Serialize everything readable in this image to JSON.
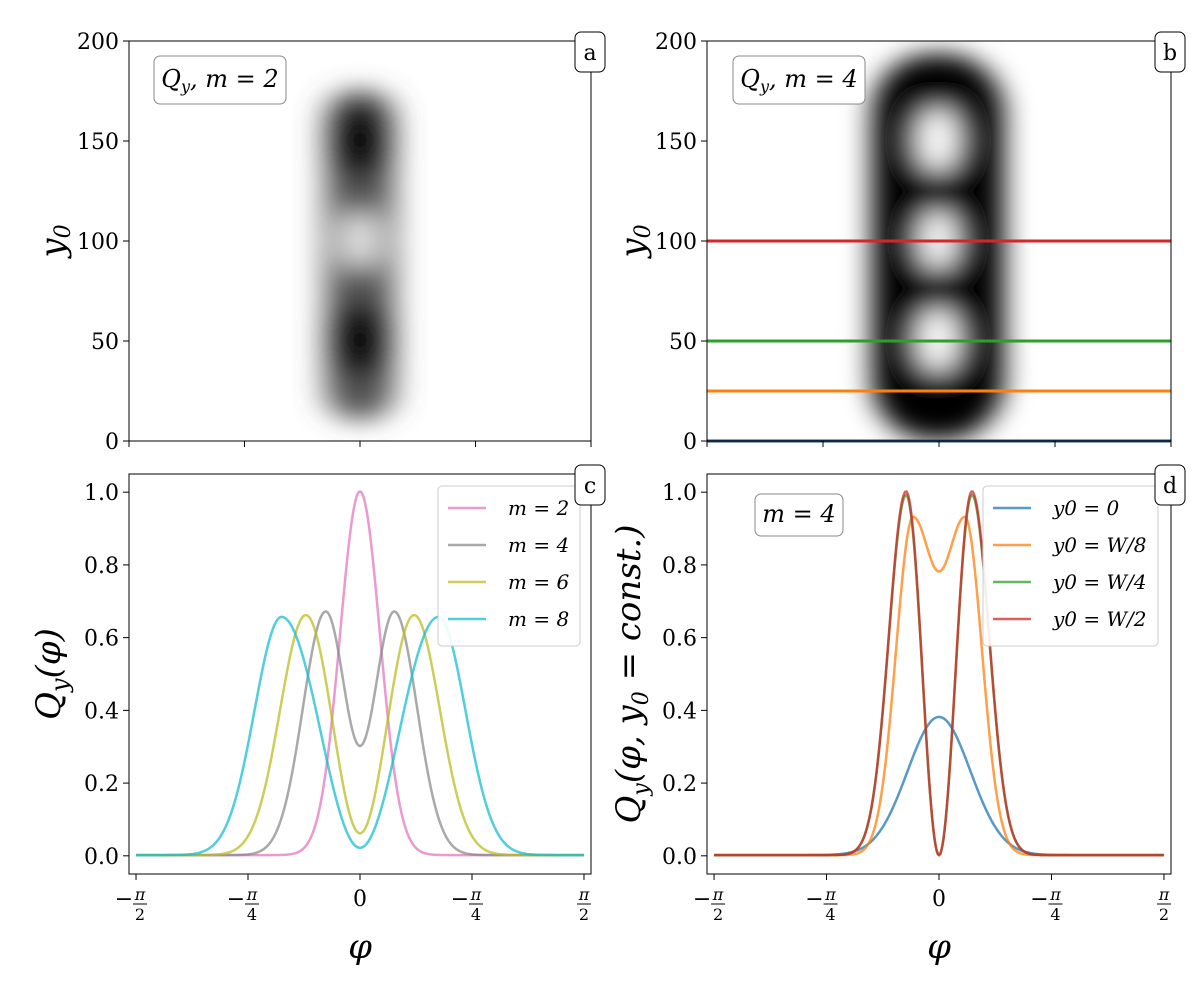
{
  "chart_data": [
    {
      "panel": "a",
      "type": "heatmap",
      "annotation": "Q_y, m = 2",
      "xlabel": "",
      "ylabel": "y0",
      "x_ticks": [],
      "y_ticks": [
        "0",
        "50",
        "100",
        "150",
        "200"
      ],
      "ylim": [
        0,
        200
      ],
      "m": 2,
      "colormap": "white-to-black"
    },
    {
      "panel": "b",
      "type": "heatmap",
      "annotation": "Q_y, m = 4",
      "xlabel": "",
      "ylabel": "y0",
      "x_ticks": [],
      "y_ticks": [
        "0",
        "50",
        "100",
        "150",
        "200"
      ],
      "ylim": [
        0,
        200
      ],
      "m": 4,
      "colormap": "white-to-black",
      "hlines": [
        {
          "y": 0,
          "color": "#1f4e79"
        },
        {
          "y": 25,
          "color": "#ff7f0e"
        },
        {
          "y": 50,
          "color": "#2ca02c"
        },
        {
          "y": 100,
          "color": "#d62728"
        }
      ]
    },
    {
      "panel": "c",
      "type": "line",
      "xlabel": "φ",
      "ylabel": "Q_y(φ)",
      "xlim": [
        -1.62,
        1.62
      ],
      "ylim": [
        -0.05,
        1.05
      ],
      "x_ticks": [
        "−π/2",
        "−π/4",
        "0",
        "−π/4",
        "π/2"
      ],
      "y_ticks": [
        "0.0",
        "0.2",
        "0.4",
        "0.6",
        "0.8",
        "1.0"
      ],
      "legend": "top-right",
      "series": [
        {
          "name": "m = 2",
          "color": "#e377c2",
          "peaks": [
            [
              0.0,
              1.0
            ]
          ],
          "center": 0.0,
          "sigma": 0.14
        },
        {
          "name": "m = 4",
          "color": "#8c8c8c",
          "peaks": [
            [
              -0.24,
              0.67
            ],
            [
              0.24,
              0.67
            ]
          ],
          "center": 0.3,
          "sigma": 0.16
        },
        {
          "name": "m = 6",
          "color": "#bcbd22",
          "peaks": [
            [
              -0.38,
              0.66
            ],
            [
              0.38,
              0.66
            ]
          ],
          "center": 0.06,
          "sigma": 0.18
        },
        {
          "name": "m = 8",
          "color": "#17becf",
          "peaks": [
            [
              -0.55,
              0.655
            ],
            [
              0.55,
              0.655
            ]
          ],
          "center": 0.02,
          "sigma": 0.19
        }
      ]
    },
    {
      "panel": "d",
      "type": "line",
      "annotation": "m = 4",
      "xlabel": "φ",
      "ylabel": "Q_y(φ, y0 = const.)",
      "xlim": [
        -1.62,
        1.62
      ],
      "ylim": [
        -0.05,
        1.05
      ],
      "x_ticks": [
        "−π/2",
        "−π/4",
        "0",
        "−π/4",
        "π/2"
      ],
      "y_ticks": [
        "0.0",
        "0.2",
        "0.4",
        "0.6",
        "0.8",
        "1.0"
      ],
      "legend": "top-right",
      "series": [
        {
          "name": "y0 = 0",
          "color": "#1f77b4",
          "peak": [
            0.0,
            0.38
          ]
        },
        {
          "name": "y0 = W/8",
          "color": "#ff7f0e",
          "peaks": [
            [
              -0.18,
              0.93
            ],
            [
              0.18,
              0.93
            ]
          ],
          "center": 0.78
        },
        {
          "name": "y0 = W/4",
          "color": "#2ca02c",
          "peaks": [
            [
              -0.23,
              0.99
            ],
            [
              0.23,
              0.99
            ]
          ],
          "center": 0.0
        },
        {
          "name": "y0 = W/2",
          "color": "#d62728",
          "peaks": [
            [
              -0.23,
              1.0
            ],
            [
              0.23,
              1.0
            ]
          ],
          "center": 0.0
        }
      ]
    }
  ],
  "labels": {
    "panel_a": "a",
    "panel_b": "b",
    "panel_c": "c",
    "panel_d": "d"
  }
}
